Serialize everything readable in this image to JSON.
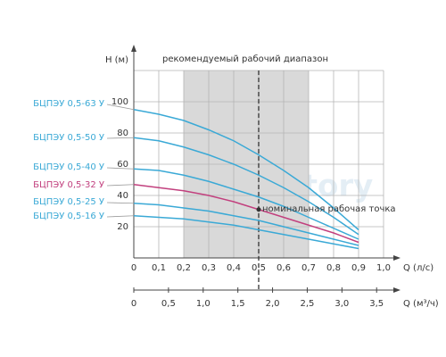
{
  "chart_data": {
    "type": "line",
    "title": "рекомендуемый рабочий диапазон",
    "annotation": "номинальная рабочая точка",
    "watermark": "Aquastory",
    "x_label": "Q (л/с)",
    "x2_label": "Q (м³/ч)",
    "y_label": "H (м)",
    "x": [
      0,
      0.1,
      0.2,
      0.3,
      0.4,
      0.5,
      0.6,
      0.7,
      0.8,
      0.9
    ],
    "series": [
      {
        "name": "БЦПЭУ 0,5-63 У",
        "color": "#3aa9d6",
        "values": [
          95,
          92,
          88,
          82,
          75,
          66,
          56,
          45,
          32,
          18
        ]
      },
      {
        "name": "БЦПЭУ 0,5-50 У",
        "color": "#3aa9d6",
        "values": [
          77,
          75,
          71,
          66,
          60,
          53,
          45,
          36,
          26,
          15
        ]
      },
      {
        "name": "БЦПЭУ 0,5-40 У",
        "color": "#3aa9d6",
        "values": [
          57,
          56,
          53,
          49,
          44,
          39,
          33,
          26,
          19,
          12
        ]
      },
      {
        "name": "БЦПЭУ 0,5-32 У",
        "color": "#c2407e",
        "values": [
          47,
          45,
          43,
          40,
          36,
          31,
          26,
          21,
          16,
          10
        ]
      },
      {
        "name": "БЦПЭУ 0,5-25 У",
        "color": "#3aa9d6",
        "values": [
          35,
          34,
          32,
          30,
          27,
          24,
          20,
          16,
          12,
          8
        ]
      },
      {
        "name": "БЦПЭУ 0,5-16 У",
        "color": "#3aa9d6",
        "values": [
          27,
          26,
          25,
          23,
          21,
          18,
          15,
          12,
          9,
          6
        ]
      }
    ],
    "recommended_range": [
      0.2,
      0.7
    ],
    "nominal_point": {
      "x": 0.5,
      "y": 31
    },
    "xlim": [
      0,
      1.0
    ],
    "xticks": [
      0,
      {
        "value": 0.1,
        "label": "0,1"
      },
      {
        "value": 0.2,
        "label": "0,2"
      },
      {
        "value": 0.3,
        "label": "0,3"
      },
      {
        "value": 0.4,
        "label": "0,4"
      },
      {
        "value": 0.5,
        "label": "0,5"
      },
      {
        "value": 0.6,
        "label": "0,6"
      },
      {
        "value": 0.7,
        "label": "0,7"
      },
      {
        "value": 0.8,
        "label": "0,8"
      },
      {
        "value": 0.9,
        "label": "0,9"
      },
      {
        "value": 1.0,
        "label": "1,0"
      }
    ],
    "x2lim": [
      0,
      3.6
    ],
    "x2ticks": [
      0,
      {
        "value": 0.5,
        "label": "0,5"
      },
      {
        "value": 1.0,
        "label": "1,0"
      },
      {
        "value": 1.5,
        "label": "1,5"
      },
      {
        "value": 2.0,
        "label": "2,0"
      },
      {
        "value": 2.5,
        "label": "2,5"
      },
      {
        "value": 3.0,
        "label": "3,0"
      },
      {
        "value": 3.5,
        "label": "3,5"
      }
    ],
    "ylim": [
      0,
      120
    ],
    "yticks": [
      20,
      40,
      60,
      80,
      100
    ],
    "grid": true
  }
}
